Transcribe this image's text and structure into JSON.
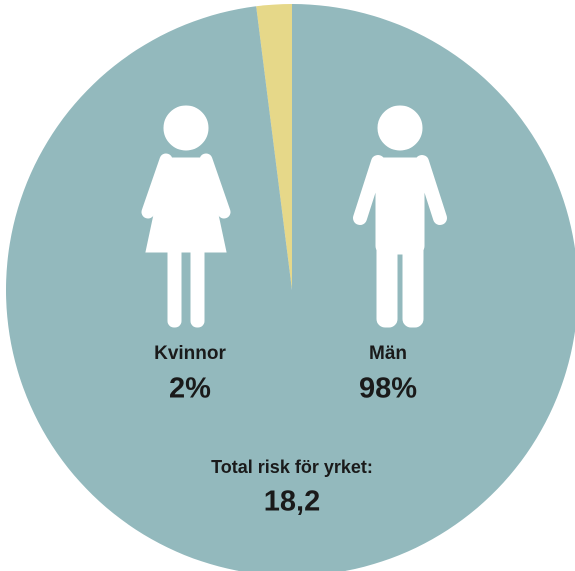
{
  "chart_data": {
    "type": "pie",
    "categories": [
      "Kvinnor",
      "Män"
    ],
    "values": [
      2,
      98
    ],
    "value_labels": [
      "2%",
      "98%"
    ],
    "colors": [
      "#e6d889",
      "#93b9bd"
    ],
    "annotations": [
      "Total risk för yrket:",
      "18,2"
    ]
  }
}
